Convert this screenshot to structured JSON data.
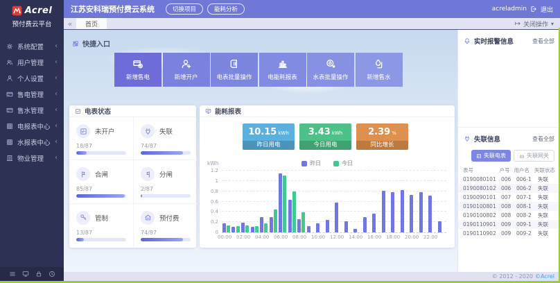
{
  "sidebar": {
    "logo_text": "Acrel",
    "logo_subtitle": "预付费云平台",
    "items": [
      {
        "label": "系统配置",
        "icon": "gear-icon"
      },
      {
        "label": "用户管理",
        "icon": "users-icon"
      },
      {
        "label": "个人设置",
        "icon": "user-icon"
      },
      {
        "label": "售电管理",
        "icon": "card-icon"
      },
      {
        "label": "售水管理",
        "icon": "card-icon"
      },
      {
        "label": "电报表中心",
        "icon": "table-icon"
      },
      {
        "label": "水报表中心",
        "icon": "table-icon"
      },
      {
        "label": "物业管理",
        "icon": "building-icon"
      }
    ],
    "footer_icons": [
      "menu-icon",
      "monitor-icon",
      "lock-icon",
      "clock-icon"
    ]
  },
  "topbar": {
    "title": "江苏安科瑞预付费云系统",
    "buttons": [
      "切换项目",
      "能耗分析"
    ],
    "username": "acreladmin",
    "logout_label": "退出"
  },
  "tabbar": {
    "active_tab": "首页",
    "close_menu_label": "关闭操作"
  },
  "quick_entry": {
    "title": "快捷入口",
    "buttons": [
      {
        "label": "新增售电",
        "icon": "sale-electric-icon",
        "color": "#6e6cd8"
      },
      {
        "label": "新增开户",
        "icon": "add-user-icon",
        "color": "#7a81de"
      },
      {
        "label": "电表批量操作",
        "icon": "meter-batch-icon",
        "color": "#7c86df"
      },
      {
        "label": "电能耗报表",
        "icon": "energy-report-icon",
        "color": "#808be1"
      },
      {
        "label": "水表批量操作",
        "icon": "water-batch-icon",
        "color": "#8691e3"
      },
      {
        "label": "新增售水",
        "icon": "sale-water-icon",
        "color": "#8c98e5"
      }
    ]
  },
  "meter_status": {
    "title": "电表状态",
    "total": 87,
    "items": [
      {
        "label": "未开户",
        "count": 18,
        "icon": "meter-icon"
      },
      {
        "label": "失联",
        "count": 74,
        "icon": "offline-plug-icon"
      },
      {
        "label": "合闸",
        "count": 85,
        "icon": "switch-on-icon"
      },
      {
        "label": "分闸",
        "count": 2,
        "icon": "switch-off-icon"
      },
      {
        "label": "管制",
        "count": 13,
        "icon": "key-icon"
      },
      {
        "label": "预付费",
        "count": 74,
        "icon": "prepaid-icon"
      }
    ]
  },
  "energy_report": {
    "title": "能耗报表",
    "kpis": [
      {
        "value": "10.15",
        "unit": "kWh",
        "label": "昨日用电",
        "color_top": "#5cb0dd",
        "color_bottom": "#4c93ba"
      },
      {
        "value": "3.43",
        "unit": "kWh",
        "label": "今日用电",
        "color_top": "#4dc187",
        "color_bottom": "#40a271"
      },
      {
        "value": "2.39",
        "unit": "%",
        "label": "同比增长",
        "color_top": "#de904e",
        "color_bottom": "#bc7a3e"
      }
    ],
    "chart_data": {
      "type": "bar",
      "ylabel": "kWh",
      "ylim": [
        0,
        1.2
      ],
      "yticks": [
        0,
        0.2,
        0.4,
        0.6,
        0.8,
        1,
        1.2
      ],
      "grid": true,
      "legend_position": "top",
      "x": [
        "00:00",
        "01:00",
        "02:00",
        "03:00",
        "04:00",
        "05:00",
        "06:00",
        "07:00",
        "08:00",
        "09:00",
        "10:00",
        "11:00",
        "12:00",
        "13:00",
        "14:00",
        "15:00",
        "16:00",
        "17:00",
        "18:00",
        "19:00",
        "20:00",
        "21:00",
        "22:00",
        "23:00"
      ],
      "x_label_every": 2,
      "series": [
        {
          "name": "昨日",
          "color": "#7177e2",
          "values": [
            0.18,
            0.11,
            0.19,
            0.11,
            0.3,
            0.3,
            1.15,
            0.64,
            0.26,
            0.12,
            0.17,
            0.24,
            0.58,
            0.22,
            0.07,
            0.3,
            0.36,
            0.81,
            0.78,
            0.82,
            0.73,
            0.78,
            0.72,
            0.22
          ]
        },
        {
          "name": "今日",
          "color": "#3ecb90",
          "values": [
            0.13,
            0.12,
            0.14,
            0.12,
            0.18,
            0.45,
            1.1,
            0.8,
            0.39,
            null,
            null,
            null,
            null,
            null,
            null,
            null,
            null,
            null,
            null,
            null,
            null,
            null,
            null,
            null
          ]
        }
      ]
    }
  },
  "alarm_panel": {
    "title": "实时报警信息",
    "view_all": "查看全部"
  },
  "offline_panel": {
    "title": "失联信息",
    "view_all": "查看全部",
    "filter_buttons": [
      {
        "label": "失联电表",
        "icon": "meter-icon",
        "active": true
      },
      {
        "label": "失联网关",
        "icon": "gateway-icon",
        "active": false
      }
    ],
    "table": {
      "headers": [
        "表号",
        "户号",
        "用户名",
        "失联状态"
      ],
      "rows": [
        [
          "0190080101",
          "006",
          "006-1",
          "失联"
        ],
        [
          "0190080102",
          "006",
          "006-2",
          "失联"
        ],
        [
          "0190090101",
          "007",
          "007-1",
          "失联"
        ],
        [
          "0190100801",
          "008",
          "008-1",
          "失联"
        ],
        [
          "0190100802",
          "008",
          "008-2",
          "失联"
        ],
        [
          "0190110901",
          "009",
          "009-1",
          "失联"
        ],
        [
          "0190110902",
          "009",
          "009-2",
          "失联"
        ]
      ]
    }
  },
  "footer": {
    "copyright": "© 2012 - 2020",
    "brand": "©Acrel"
  }
}
